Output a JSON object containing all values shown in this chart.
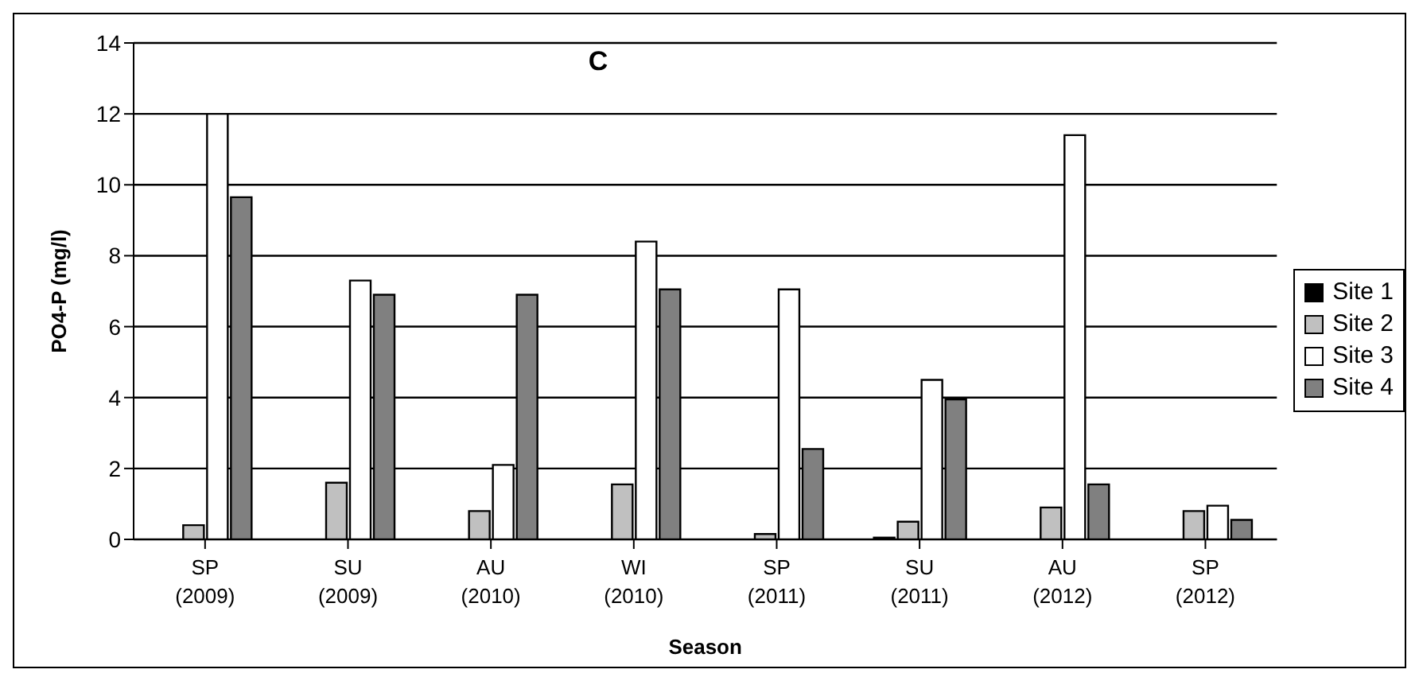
{
  "chart_data": {
    "type": "bar",
    "title": "C",
    "xlabel": "Season",
    "ylabel": "PO4-P (mg/l)",
    "categories": [
      "SP\n(2009)",
      "SU\n(2009)",
      "AU\n(2010)",
      "WI\n(2010)",
      "SP\n(2011)",
      "SU\n(2011)",
      "AU\n(2012)",
      "SP\n(2012)"
    ],
    "series": [
      {
        "name": "Site 1",
        "color": "#000000",
        "values": [
          0,
          0,
          0,
          0,
          0,
          0.05,
          0,
          0
        ]
      },
      {
        "name": "Site 2",
        "color": "#c0c0c0",
        "values": [
          0.4,
          1.6,
          0.8,
          1.55,
          0.15,
          0.5,
          0.9,
          0.8
        ]
      },
      {
        "name": "Site 3",
        "color": "#ffffff",
        "values": [
          12,
          7.3,
          2.1,
          8.4,
          7.05,
          4.5,
          11.4,
          0.95
        ]
      },
      {
        "name": "Site 4",
        "color": "#808080",
        "values": [
          9.65,
          6.9,
          6.9,
          7.05,
          2.55,
          3.95,
          1.55,
          0.55
        ]
      }
    ],
    "ylim": [
      0,
      14
    ],
    "yticks": [
      0,
      2,
      4,
      6,
      8,
      10,
      12,
      14
    ],
    "grid": "y",
    "legend": "right"
  }
}
